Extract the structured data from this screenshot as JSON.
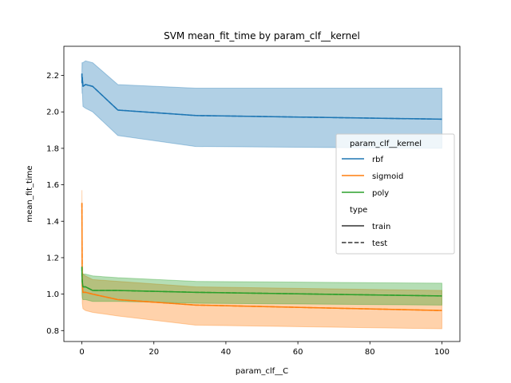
{
  "chart_data": {
    "type": "line",
    "title": "SVM mean_fit_time by param_clf__kernel",
    "xlabel": "param_clf__C",
    "ylabel": "mean_fit_time",
    "xlim": [
      -5,
      105
    ],
    "ylim": [
      0.74,
      2.36
    ],
    "xticks": [
      0,
      20,
      40,
      60,
      80,
      100
    ],
    "yticks": [
      0.8,
      1.0,
      1.2,
      1.4,
      1.6,
      1.8,
      2.0,
      2.2
    ],
    "grid": false,
    "legend": {
      "placement": "right",
      "hue_title": "param_clf__kernel",
      "style_title": "type",
      "style_entries": [
        {
          "label": "train",
          "dash": "solid"
        },
        {
          "label": "test",
          "dash": "dashed"
        }
      ]
    },
    "series": [
      {
        "name": "rbf",
        "color": "#1f77b4",
        "x": [
          0.01,
          0.03,
          0.1,
          0.3,
          1,
          3,
          10,
          31.6,
          100
        ],
        "y": [
          2.21,
          2.16,
          2.19,
          2.14,
          2.15,
          2.14,
          2.01,
          1.98,
          1.96
        ],
        "lower": [
          2.15,
          2.1,
          2.13,
          2.03,
          2.02,
          2.0,
          1.87,
          1.81,
          1.8
        ],
        "upper": [
          2.27,
          2.23,
          2.27,
          2.27,
          2.28,
          2.27,
          2.15,
          2.13,
          2.13
        ]
      },
      {
        "name": "sigmoid",
        "color": "#ff7f0e",
        "x": [
          0.01,
          0.03,
          0.1,
          0.3,
          1,
          3,
          10,
          31.6,
          100
        ],
        "y": [
          1.5,
          1.4,
          1.05,
          1.01,
          1.01,
          1.0,
          0.97,
          0.94,
          0.91
        ],
        "lower": [
          1.45,
          1.3,
          0.95,
          0.92,
          0.91,
          0.9,
          0.88,
          0.83,
          0.81
        ],
        "upper": [
          1.57,
          1.5,
          1.15,
          1.11,
          1.1,
          1.08,
          1.07,
          1.04,
          1.02
        ]
      },
      {
        "name": "poly",
        "color": "#2ca02c",
        "x": [
          0.01,
          0.03,
          0.1,
          0.3,
          1,
          3,
          10,
          31.6,
          100
        ],
        "y": [
          1.15,
          1.1,
          1.07,
          1.04,
          1.04,
          1.02,
          1.02,
          1.01,
          0.99
        ],
        "lower": [
          1.05,
          1.0,
          0.98,
          0.97,
          0.97,
          0.96,
          0.96,
          0.95,
          0.94
        ],
        "upper": [
          1.17,
          1.13,
          1.11,
          1.11,
          1.11,
          1.1,
          1.09,
          1.07,
          1.06
        ]
      }
    ]
  }
}
